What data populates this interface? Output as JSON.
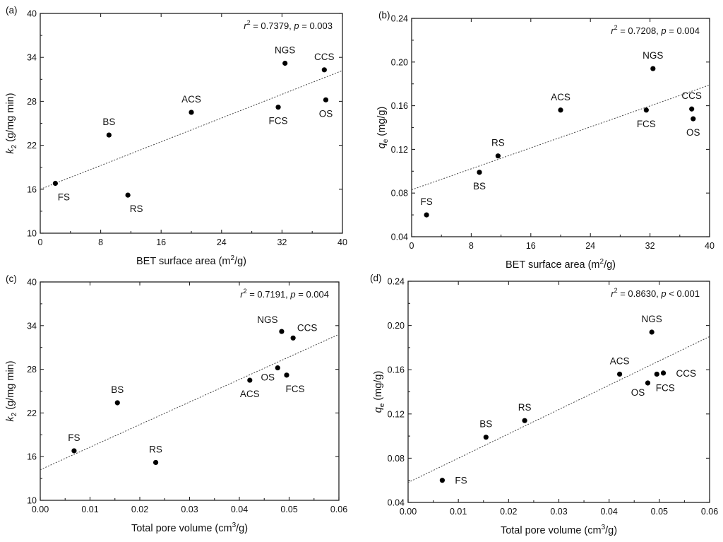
{
  "chart_data": [
    {
      "panel": "(a)",
      "type": "scatter",
      "xlabel": {
        "main": "BET surface area (m",
        "sup": "2",
        "tail": "/g)"
      },
      "ylabel": {
        "main": "k",
        "sub": "2",
        "tail": " (g/mg min)"
      },
      "xlim": [
        0,
        40
      ],
      "ylim": [
        10,
        40
      ],
      "xticks": [
        "0",
        "8",
        "16",
        "24",
        "32",
        "40"
      ],
      "yticks": [
        "10",
        "16",
        "22",
        "28",
        "34",
        "40"
      ],
      "xtick_values": [
        0,
        8,
        16,
        24,
        32,
        40
      ],
      "ytick_values": [
        10,
        16,
        22,
        28,
        34,
        40
      ],
      "stats": {
        "r2_value": "0.7379",
        "p_op": "=",
        "p_value": "0.003"
      },
      "fit_line": {
        "x": [
          0,
          40
        ],
        "y": [
          16.0,
          32.2
        ]
      },
      "points": [
        {
          "label": "FS",
          "x": 2.0,
          "y": 16.8,
          "label_pos": "below-right"
        },
        {
          "label": "BS",
          "x": 9.1,
          "y": 23.4,
          "label_pos": "above"
        },
        {
          "label": "RS",
          "x": 11.6,
          "y": 15.2,
          "label_pos": "below-right"
        },
        {
          "label": "ACS",
          "x": 20.0,
          "y": 26.5,
          "label_pos": "above"
        },
        {
          "label": "FCS",
          "x": 31.5,
          "y": 27.2,
          "label_pos": "below"
        },
        {
          "label": "NGS",
          "x": 32.4,
          "y": 33.2,
          "label_pos": "above"
        },
        {
          "label": "CCS",
          "x": 37.6,
          "y": 32.3,
          "label_pos": "above"
        },
        {
          "label": "OS",
          "x": 37.8,
          "y": 28.2,
          "label_pos": "below"
        }
      ]
    },
    {
      "panel": "(b)",
      "type": "scatter",
      "xlabel": {
        "main": "BET surface area (m",
        "sup": "2",
        "tail": "/g)"
      },
      "ylabel": {
        "main": "q",
        "sub": "e",
        "tail": " (mg/g)"
      },
      "xlim": [
        0,
        40
      ],
      "ylim": [
        0.04,
        0.24
      ],
      "xticks": [
        "0",
        "8",
        "16",
        "24",
        "32",
        "40"
      ],
      "yticks": [
        "0.04",
        "0.08",
        "0.12",
        "0.16",
        "0.20",
        "0.24"
      ],
      "xtick_values": [
        0,
        8,
        16,
        24,
        32,
        40
      ],
      "ytick_values": [
        0.04,
        0.08,
        0.12,
        0.16,
        0.2,
        0.24
      ],
      "stats": {
        "r2_value": "0.7208",
        "p_op": "=",
        "p_value": "0.004"
      },
      "fit_line": {
        "x": [
          0,
          40
        ],
        "y": [
          0.083,
          0.179
        ]
      },
      "points": [
        {
          "label": "FS",
          "x": 2.0,
          "y": 0.06,
          "label_pos": "above"
        },
        {
          "label": "BS",
          "x": 9.1,
          "y": 0.099,
          "label_pos": "below"
        },
        {
          "label": "RS",
          "x": 11.6,
          "y": 0.114,
          "label_pos": "above"
        },
        {
          "label": "ACS",
          "x": 20.0,
          "y": 0.156,
          "label_pos": "above"
        },
        {
          "label": "FCS",
          "x": 31.5,
          "y": 0.156,
          "label_pos": "below"
        },
        {
          "label": "NGS",
          "x": 32.4,
          "y": 0.194,
          "label_pos": "above"
        },
        {
          "label": "CCS",
          "x": 37.6,
          "y": 0.157,
          "label_pos": "above"
        },
        {
          "label": "OS",
          "x": 37.8,
          "y": 0.148,
          "label_pos": "below"
        }
      ]
    },
    {
      "panel": "(c)",
      "type": "scatter",
      "xlabel": {
        "main": "Total pore volume (cm",
        "sup": "3",
        "tail": "/g)"
      },
      "ylabel": {
        "main": "k",
        "sub": "2",
        "tail": " (g/mg min)"
      },
      "xlim": [
        0,
        0.06
      ],
      "ylim": [
        10,
        40
      ],
      "xticks": [
        "0.00",
        "0.01",
        "0.02",
        "0.03",
        "0.04",
        "0.05",
        "0.06"
      ],
      "yticks": [
        "10",
        "16",
        "22",
        "28",
        "34",
        "40"
      ],
      "xtick_values": [
        0,
        0.01,
        0.02,
        0.03,
        0.04,
        0.05,
        0.06
      ],
      "ytick_values": [
        10,
        16,
        22,
        28,
        34,
        40
      ],
      "stats": {
        "r2_value": "0.7191",
        "p_op": "=",
        "p_value": "0.004"
      },
      "fit_line": {
        "x": [
          0,
          0.06
        ],
        "y": [
          14.2,
          32.8
        ]
      },
      "points": [
        {
          "label": "FS",
          "x": 0.0068,
          "y": 16.8,
          "label_pos": "above"
        },
        {
          "label": "BS",
          "x": 0.0155,
          "y": 23.4,
          "label_pos": "above"
        },
        {
          "label": "RS",
          "x": 0.0232,
          "y": 15.2,
          "label_pos": "above"
        },
        {
          "label": "ACS",
          "x": 0.0421,
          "y": 26.5,
          "label_pos": "below"
        },
        {
          "label": "OS",
          "x": 0.0477,
          "y": 28.2,
          "label_pos": "below-left"
        },
        {
          "label": "FCS",
          "x": 0.0495,
          "y": 27.2,
          "label_pos": "below-right"
        },
        {
          "label": "NGS",
          "x": 0.0485,
          "y": 33.2,
          "label_pos": "above-left"
        },
        {
          "label": "CCS",
          "x": 0.0508,
          "y": 32.3,
          "label_pos": "above-right"
        }
      ]
    },
    {
      "panel": "(d)",
      "type": "scatter",
      "xlabel": {
        "main": "Total pore volume (cm",
        "sup": "3",
        "tail": "/g)"
      },
      "ylabel": {
        "main": "q",
        "sub": "e",
        "tail": " (mg/g)"
      },
      "xlim": [
        0,
        0.06
      ],
      "ylim": [
        0.04,
        0.24
      ],
      "xticks": [
        "0.00",
        "0.01",
        "0.02",
        "0.03",
        "0.04",
        "0.05",
        "0.06"
      ],
      "yticks": [
        "0.04",
        "0.08",
        "0.12",
        "0.16",
        "0.20",
        "0.24"
      ],
      "xtick_values": [
        0,
        0.01,
        0.02,
        0.03,
        0.04,
        0.05,
        0.06
      ],
      "ytick_values": [
        0.04,
        0.08,
        0.12,
        0.16,
        0.2,
        0.24
      ],
      "stats": {
        "r2_value": "0.8630",
        "p_op": "<",
        "p_value": "0.001"
      },
      "fit_line": {
        "x": [
          0,
          0.06
        ],
        "y": [
          0.058,
          0.19
        ]
      },
      "points": [
        {
          "label": "FS",
          "x": 0.0068,
          "y": 0.06,
          "label_pos": "right"
        },
        {
          "label": "BS",
          "x": 0.0155,
          "y": 0.099,
          "label_pos": "above"
        },
        {
          "label": "RS",
          "x": 0.0232,
          "y": 0.114,
          "label_pos": "above"
        },
        {
          "label": "ACS",
          "x": 0.0421,
          "y": 0.156,
          "label_pos": "above"
        },
        {
          "label": "OS",
          "x": 0.0477,
          "y": 0.148,
          "label_pos": "below-left"
        },
        {
          "label": "FCS",
          "x": 0.0495,
          "y": 0.156,
          "label_pos": "below-right"
        },
        {
          "label": "NGS",
          "x": 0.0485,
          "y": 0.194,
          "label_pos": "above"
        },
        {
          "label": "CCS",
          "x": 0.0508,
          "y": 0.157,
          "label_pos": "right"
        }
      ]
    }
  ]
}
